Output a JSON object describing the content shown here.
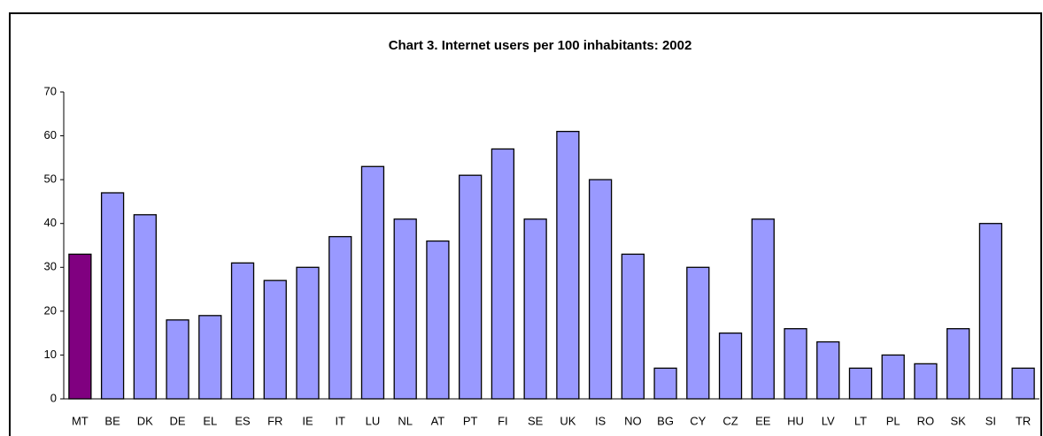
{
  "chart_data": {
    "type": "bar",
    "title": "Chart 3.  Internet users per 100 inhabitants: 2002",
    "categories": [
      "MT",
      "BE",
      "DK",
      "DE",
      "EL",
      "ES",
      "FR",
      "IE",
      "IT",
      "LU",
      "NL",
      "AT",
      "PT",
      "FI",
      "SE",
      "UK",
      "IS",
      "NO",
      "BG",
      "CY",
      "CZ",
      "EE",
      "HU",
      "LV",
      "LT",
      "PL",
      "RO",
      "SK",
      "SI",
      "TR"
    ],
    "values": [
      33,
      47,
      42,
      18,
      19,
      31,
      27,
      30,
      37,
      53,
      41,
      36,
      51,
      57,
      41,
      61,
      50,
      33,
      7,
      30,
      15,
      41,
      16,
      13,
      7,
      10,
      8,
      16,
      40,
      7
    ],
    "colors": [
      "#800080",
      "#9999ff",
      "#9999ff",
      "#9999ff",
      "#9999ff",
      "#9999ff",
      "#9999ff",
      "#9999ff",
      "#9999ff",
      "#9999ff",
      "#9999ff",
      "#9999ff",
      "#9999ff",
      "#9999ff",
      "#9999ff",
      "#9999ff",
      "#9999ff",
      "#9999ff",
      "#9999ff",
      "#9999ff",
      "#9999ff",
      "#9999ff",
      "#9999ff",
      "#9999ff",
      "#9999ff",
      "#9999ff",
      "#9999ff",
      "#9999ff",
      "#9999ff",
      "#9999ff"
    ],
    "ylim": [
      0,
      70
    ],
    "yticks": [
      0,
      10,
      20,
      30,
      40,
      50,
      60,
      70
    ],
    "grid": false
  }
}
